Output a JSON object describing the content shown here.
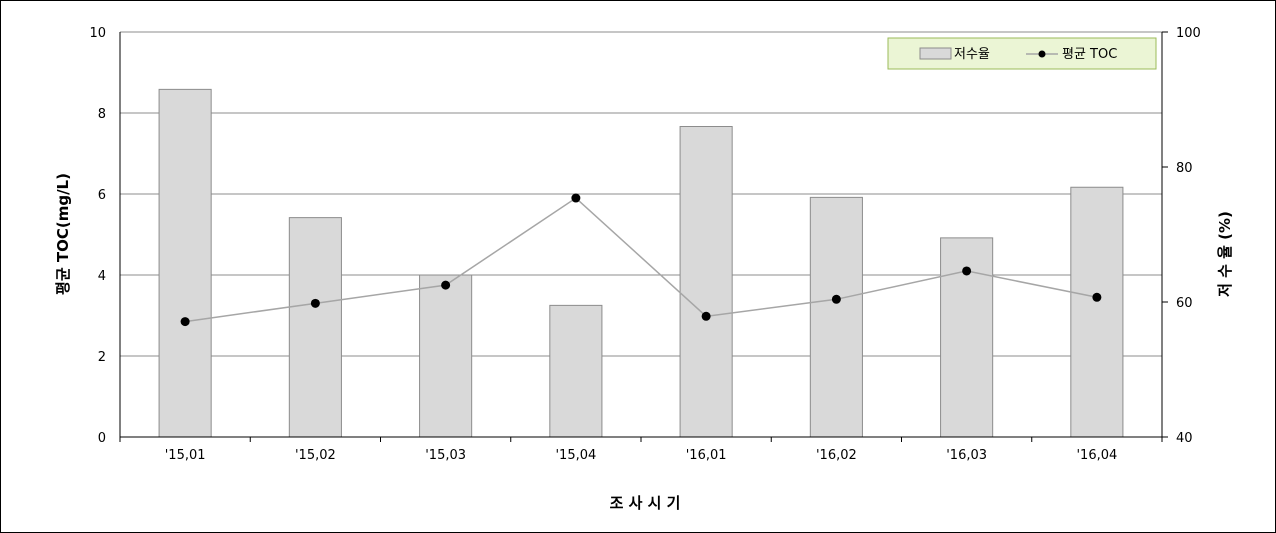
{
  "chart_data": {
    "type": "bar+line",
    "categories": [
      "'15,01",
      "'15,02",
      "'15,03",
      "'15,04",
      "'16,01",
      "'16,02",
      "'16,03",
      "'16,04"
    ],
    "series": [
      {
        "name": "저수율",
        "type": "bar",
        "axis": "right",
        "values": [
          91.5,
          72.5,
          64.0,
          59.5,
          86.0,
          75.5,
          69.5,
          77.0
        ]
      },
      {
        "name": "평균 TOC",
        "type": "line",
        "axis": "left",
        "values": [
          2.85,
          3.3,
          3.75,
          5.9,
          2.98,
          3.4,
          4.1,
          3.45
        ]
      }
    ],
    "xlabel": "조 사 시 기",
    "ylabel_left": "평균 TOC(mg/L)",
    "ylabel_right": "저 수 율 (%)",
    "ylim_left": [
      0,
      10
    ],
    "yticks_left": [
      "0",
      "2",
      "4",
      "6",
      "8",
      "10"
    ],
    "ylim_right": [
      40,
      100
    ],
    "yticks_right": [
      "40",
      "60",
      "80",
      "100"
    ],
    "grid": true,
    "legend_position": "top-right",
    "colors": {
      "bar_fill": "#d9d9d9",
      "bar_stroke": "#8c8c8c",
      "line": "#a6a6a6",
      "marker": "#000000",
      "legend_fill": "#ebf5d5",
      "legend_border": "#9bbb59"
    }
  }
}
